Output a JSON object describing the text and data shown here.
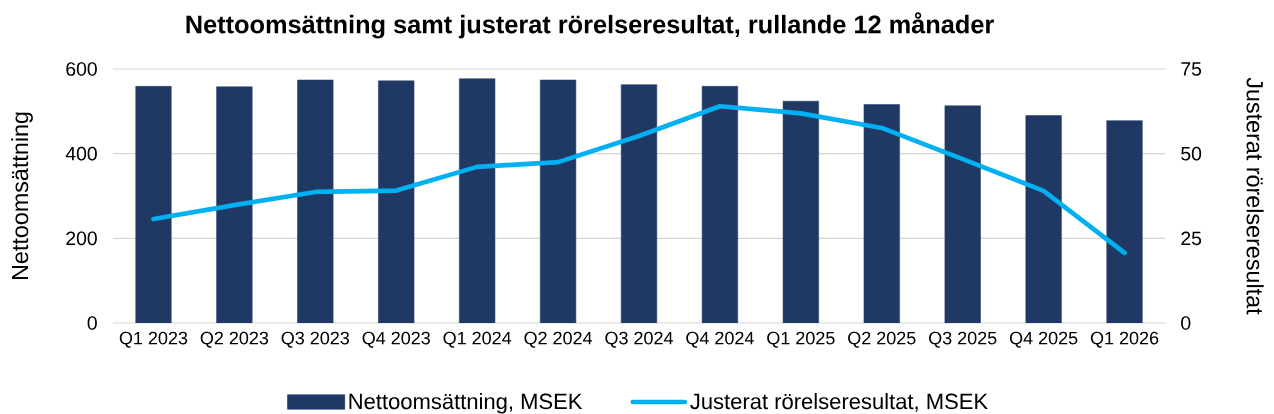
{
  "chart_data": {
    "type": "bar",
    "title": "Nettoomsättning samt justerat rörelseresultat, rullande 12 månader",
    "ylabel": "Nettoomsättning",
    "y2label": "Justerat rörelseresultat",
    "categories": [
      "Q1 2023",
      "Q2 2023",
      "Q3 2023",
      "Q4 2023",
      "Q1 2024",
      "Q2 2024",
      "Q3 2024",
      "Q4 2024",
      "Q1 2025",
      "Q2 2025",
      "Q3 2025",
      "Q4 2025",
      "Q1 2026"
    ],
    "series": [
      {
        "name": "Nettoomsättning, MSEK",
        "color": "#203864",
        "values": [
          559,
          558,
          574,
          572,
          577,
          574,
          563,
          559,
          524,
          516,
          513,
          490,
          478
        ]
      },
      {
        "name": "Justerat rörelseresultat, MSEK",
        "type": "line",
        "axis": "y2",
        "color": "#00b0f0",
        "values": [
          30.7,
          34.8,
          38.7,
          39.1,
          46.1,
          47.5,
          55.2,
          64.0,
          61.9,
          57.6,
          48.4,
          39.0,
          20.7
        ]
      }
    ],
    "ylim": [
      0,
      600
    ],
    "yticks": [
      0,
      200,
      400,
      600
    ],
    "y2lim": [
      0,
      75
    ],
    "y2ticks": [
      0,
      25,
      50,
      75
    ],
    "grid": "y",
    "legend": "bottom"
  }
}
